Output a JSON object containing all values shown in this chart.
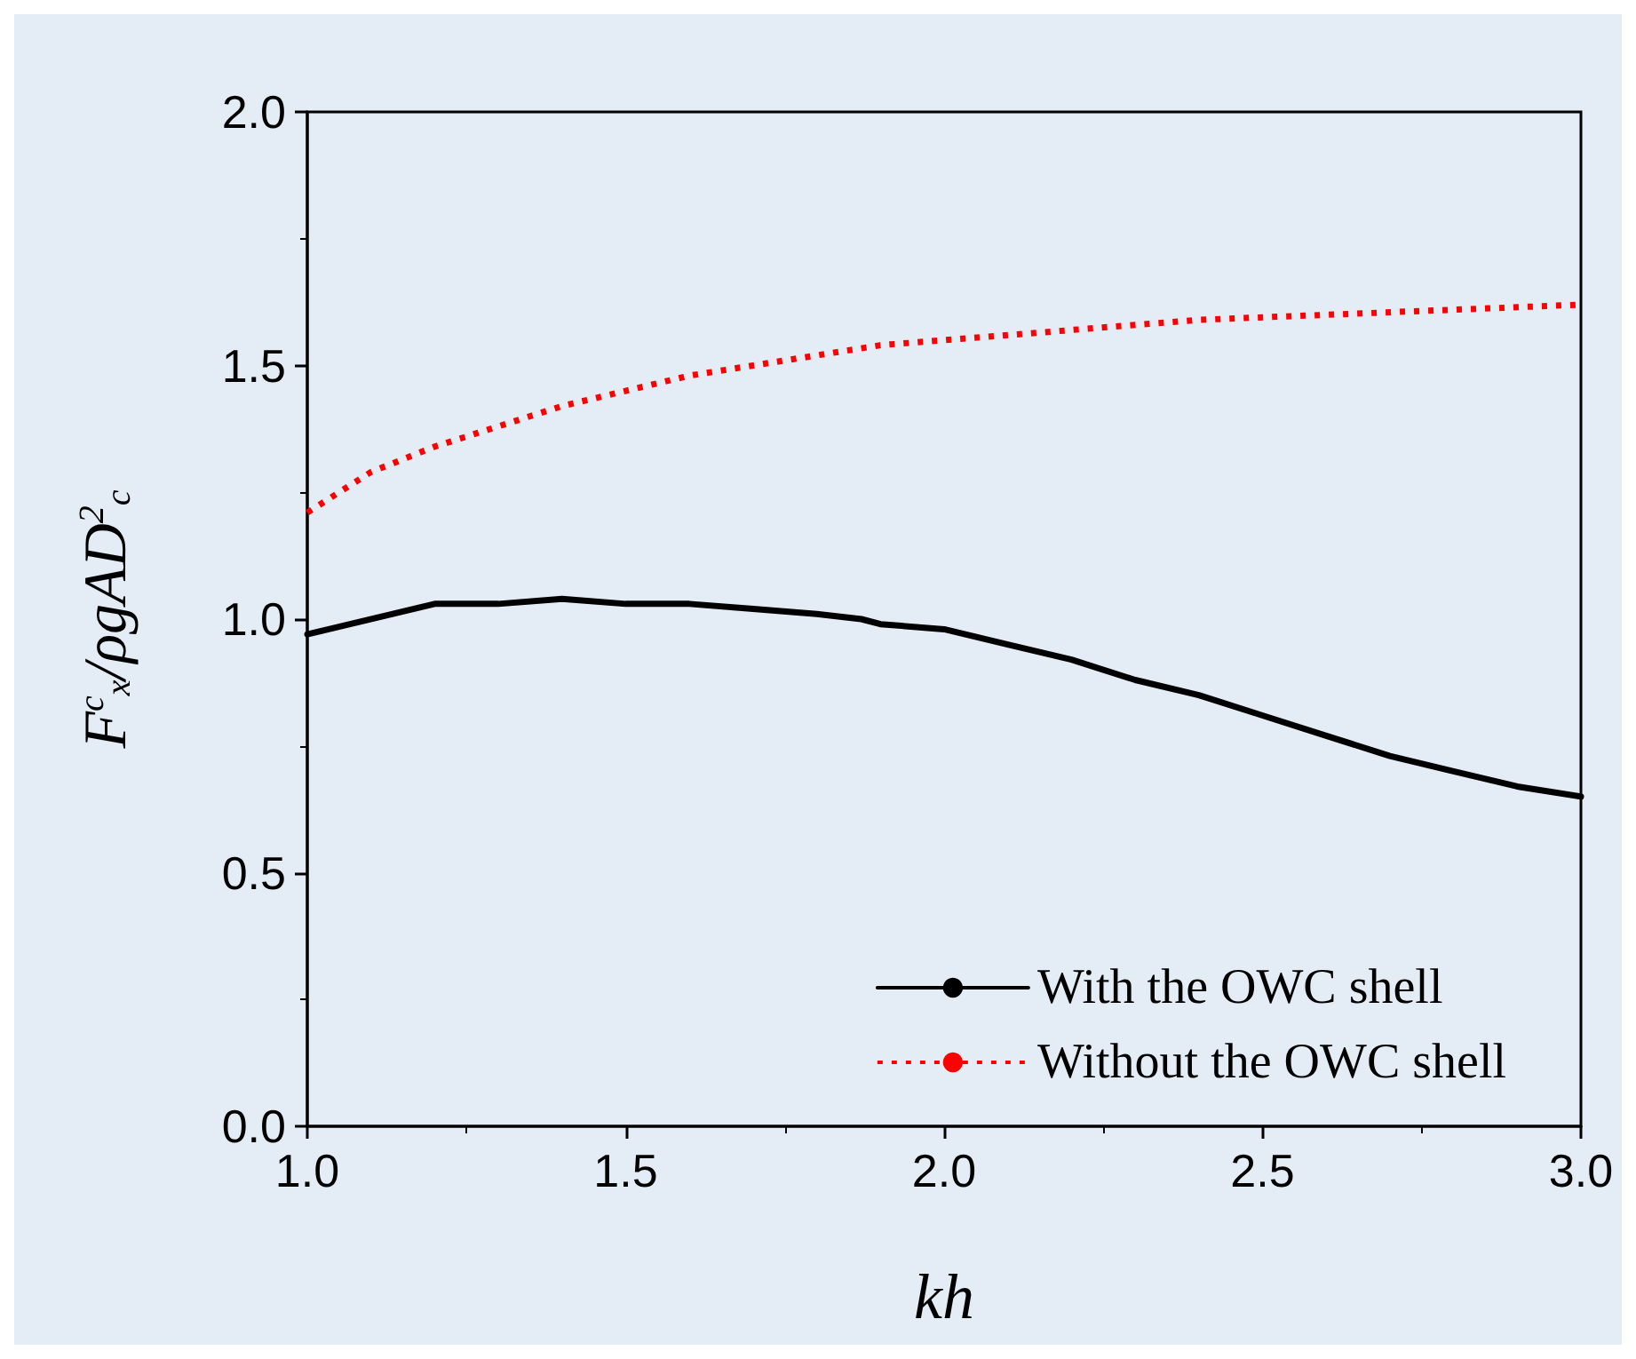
{
  "chart_data": {
    "type": "line",
    "xlabel": "kh",
    "ylabel": "F$^{c}$$_{x}$/ρgAD$^{2}$$_{c}$",
    "xlim": [
      1.0,
      3.0
    ],
    "xticks": [
      {
        "value": 1,
        "label": "1.0"
      },
      1.5,
      {
        "value": 2,
        "label": "2.0"
      },
      2.5,
      {
        "value": 3,
        "label": "3.0"
      }
    ],
    "ylim": [
      0.0,
      2.0
    ],
    "yticks": [
      {
        "value": 0,
        "label": "0.0"
      },
      0.5,
      {
        "value": 1,
        "label": "1.0"
      },
      1.5,
      {
        "value": 2,
        "label": "2.0"
      }
    ],
    "grid": false,
    "legend": "bottom right",
    "series": [
      {
        "name": "With the OWC shell",
        "color": "#000000",
        "line_style": "solid",
        "x": [
          1.0,
          1.2,
          1.3,
          1.4,
          1.5,
          1.6,
          1.7,
          1.8,
          1.87,
          1.9,
          2.0,
          2.1,
          2.2,
          2.3,
          2.4,
          2.5,
          2.6,
          2.7,
          2.8,
          2.9,
          3.0
        ],
        "values": [
          0.97,
          1.03,
          1.03,
          1.04,
          1.03,
          1.03,
          1.02,
          1.01,
          1.0,
          0.99,
          0.98,
          0.95,
          0.92,
          0.88,
          0.85,
          0.81,
          0.77,
          0.73,
          0.7,
          0.67,
          0.65
        ]
      },
      {
        "name": "Without the OWC shell",
        "color": "#ff0000",
        "line_style": "dotted",
        "x": [
          1.0,
          1.1,
          1.2,
          1.3,
          1.4,
          1.5,
          1.6,
          1.7,
          1.8,
          1.9,
          2.0,
          2.2,
          2.4,
          2.6,
          2.8,
          3.0
        ],
        "values": [
          1.21,
          1.29,
          1.34,
          1.38,
          1.42,
          1.45,
          1.48,
          1.5,
          1.52,
          1.54,
          1.55,
          1.57,
          1.59,
          1.6,
          1.61,
          1.62
        ]
      }
    ]
  }
}
